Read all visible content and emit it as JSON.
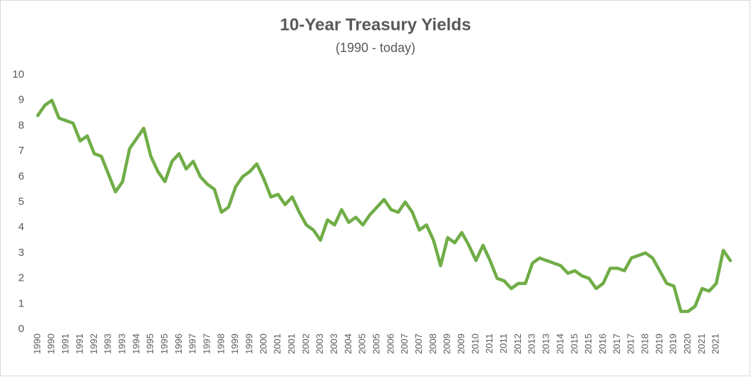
{
  "chart_data": {
    "type": "line",
    "title": "10-Year Treasury Yields",
    "subtitle": "(1990 - today)",
    "categories": [
      "1990",
      null,
      "1990",
      null,
      "1991",
      null,
      "1991",
      null,
      "1992",
      null,
      "1993",
      null,
      "1993",
      null,
      "1994",
      null,
      "1995",
      null,
      "1995",
      null,
      "1996",
      null,
      "1997",
      null,
      "1997",
      null,
      "1998",
      null,
      "1999",
      null,
      "1999",
      null,
      "2000",
      null,
      "2001",
      null,
      "2001",
      null,
      "2002",
      null,
      "2003",
      null,
      "2003",
      null,
      "2004",
      null,
      "2005",
      null,
      "2005",
      null,
      "2006",
      null,
      "2007",
      null,
      "2007",
      null,
      "2008",
      null,
      "2009",
      null,
      "2009",
      null,
      "2010",
      null,
      "2011",
      null,
      "2011",
      null,
      "2012",
      null,
      "2013",
      null,
      "2013",
      null,
      "2014",
      null,
      "2015",
      null,
      "2015",
      null,
      "2016",
      null,
      "2017",
      null,
      "2017",
      null,
      "2018",
      null,
      "2019",
      null,
      "2019",
      null,
      "2020",
      null,
      "2021",
      null,
      "2021",
      null,
      null
    ],
    "series": [
      {
        "name": "10-Year Treasury Yield",
        "color": "#70ad47",
        "values": [
          8.4,
          8.8,
          9.0,
          8.3,
          8.2,
          8.1,
          7.4,
          7.6,
          6.9,
          6.8,
          6.1,
          5.4,
          5.8,
          7.1,
          7.5,
          7.9,
          6.8,
          6.2,
          5.8,
          6.6,
          6.9,
          6.3,
          6.6,
          6.0,
          5.7,
          5.5,
          4.6,
          4.8,
          5.6,
          6.0,
          6.2,
          6.5,
          5.9,
          5.2,
          5.3,
          4.9,
          5.2,
          4.6,
          4.1,
          3.9,
          3.5,
          4.3,
          4.1,
          4.7,
          4.2,
          4.4,
          4.1,
          4.5,
          4.8,
          5.1,
          4.7,
          4.6,
          5.0,
          4.6,
          3.9,
          4.1,
          3.5,
          2.5,
          3.6,
          3.4,
          3.8,
          3.3,
          2.7,
          3.3,
          2.7,
          2.0,
          1.9,
          1.6,
          1.8,
          1.8,
          2.6,
          2.8,
          2.7,
          2.6,
          2.5,
          2.2,
          2.3,
          2.1,
          2.0,
          1.6,
          1.8,
          2.4,
          2.4,
          2.3,
          2.8,
          2.9,
          3.0,
          2.8,
          2.3,
          1.8,
          1.7,
          0.7,
          0.7,
          0.9,
          1.6,
          1.5,
          1.8,
          3.1,
          2.7
        ]
      }
    ],
    "ylim": [
      0,
      10
    ],
    "yticks": [
      0,
      1,
      2,
      3,
      4,
      5,
      6,
      7,
      8,
      9,
      10
    ],
    "grid": false
  }
}
